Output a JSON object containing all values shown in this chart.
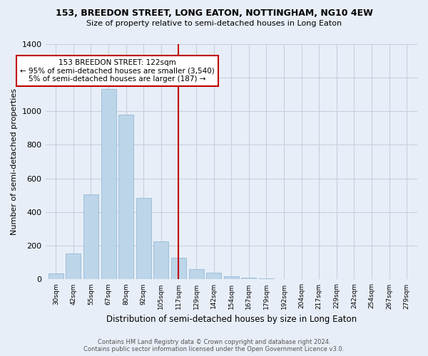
{
  "title1": "153, BREEDON STREET, LONG EATON, NOTTINGHAM, NG10 4EW",
  "title2": "Size of property relative to semi-detached houses in Long Eaton",
  "xlabel": "Distribution of semi-detached houses by size in Long Eaton",
  "ylabel": "Number of semi-detached properties",
  "bar_labels": [
    "30sqm",
    "42sqm",
    "55sqm",
    "67sqm",
    "80sqm",
    "92sqm",
    "105sqm",
    "117sqm",
    "129sqm",
    "142sqm",
    "154sqm",
    "167sqm",
    "179sqm",
    "192sqm",
    "204sqm",
    "217sqm",
    "229sqm",
    "242sqm",
    "254sqm",
    "267sqm",
    "279sqm"
  ],
  "bar_values": [
    35,
    155,
    505,
    1130,
    980,
    485,
    228,
    130,
    60,
    38,
    20,
    10,
    8,
    0,
    0,
    0,
    0,
    0,
    0,
    0,
    0
  ],
  "highlight_bar_index": 7,
  "highlight_color": "#c00000",
  "normal_bar_color": "#bdd5e8",
  "normal_bar_edge": "#8ab4d4",
  "vline_index": 7,
  "annotation_text_line1": "153 BREEDON STREET: 122sqm",
  "annotation_text_line2": "← 95% of semi-detached houses are smaller (3,540)",
  "annotation_text_line3": "5% of semi-detached houses are larger (187) →",
  "ylim": [
    0,
    1400
  ],
  "yticks": [
    0,
    200,
    400,
    600,
    800,
    1000,
    1200,
    1400
  ],
  "footer_line1": "Contains HM Land Registry data © Crown copyright and database right 2024.",
  "footer_line2": "Contains public sector information licensed under the Open Government Licence v3.0.",
  "bg_color": "#e8eef7",
  "grid_color": "#c5d0e0"
}
